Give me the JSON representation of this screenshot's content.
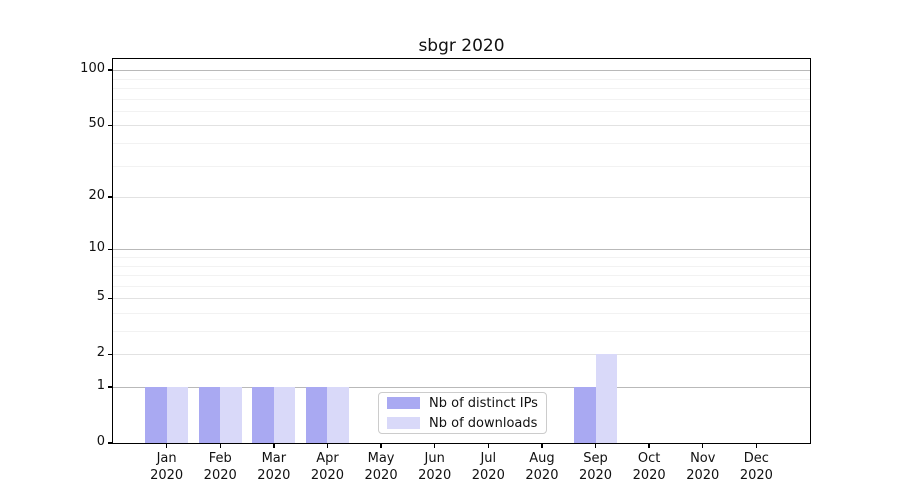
{
  "title": "sbgr 2020",
  "colors": {
    "bar_ips": "#a9a9f2",
    "bar_downloads": "#d9d9f9",
    "grid_decade": "#b9b9b9",
    "grid_labeled": "#e2e2e2",
    "grid_minor": "#f2f2f2",
    "spine": "#000000"
  },
  "legend": {
    "items": [
      {
        "label": "Nb of distinct IPs"
      },
      {
        "label": "Nb of downloads"
      }
    ]
  },
  "chart_data": {
    "type": "bar",
    "title": "sbgr 2020",
    "categories": [
      {
        "month": "Jan",
        "year": "2020"
      },
      {
        "month": "Feb",
        "year": "2020"
      },
      {
        "month": "Mar",
        "year": "2020"
      },
      {
        "month": "Apr",
        "year": "2020"
      },
      {
        "month": "May",
        "year": "2020"
      },
      {
        "month": "Jun",
        "year": "2020"
      },
      {
        "month": "Jul",
        "year": "2020"
      },
      {
        "month": "Aug",
        "year": "2020"
      },
      {
        "month": "Sep",
        "year": "2020"
      },
      {
        "month": "Oct",
        "year": "2020"
      },
      {
        "month": "Nov",
        "year": "2020"
      },
      {
        "month": "Dec",
        "year": "2020"
      }
    ],
    "series": [
      {
        "name": "Nb of distinct IPs",
        "color": "#a9a9f2",
        "values": [
          1,
          1,
          1,
          1,
          0,
          0,
          0,
          0,
          1,
          0,
          0,
          0
        ]
      },
      {
        "name": "Nb of downloads",
        "color": "#d9d9f9",
        "values": [
          1,
          1,
          1,
          1,
          0,
          0,
          0,
          0,
          2,
          0,
          0,
          0
        ]
      }
    ],
    "xlabel": "",
    "ylabel": "",
    "yscale": "log1p",
    "ylim": [
      0,
      115
    ],
    "yticks": [
      0,
      1,
      2,
      5,
      10,
      20,
      50,
      100
    ],
    "yticks_decade": [
      1,
      10,
      100
    ],
    "yticks_minor": [
      3,
      4,
      6,
      7,
      8,
      9,
      30,
      40,
      60,
      70,
      80,
      90
    ],
    "grid": true,
    "legend_position": "lower center"
  }
}
